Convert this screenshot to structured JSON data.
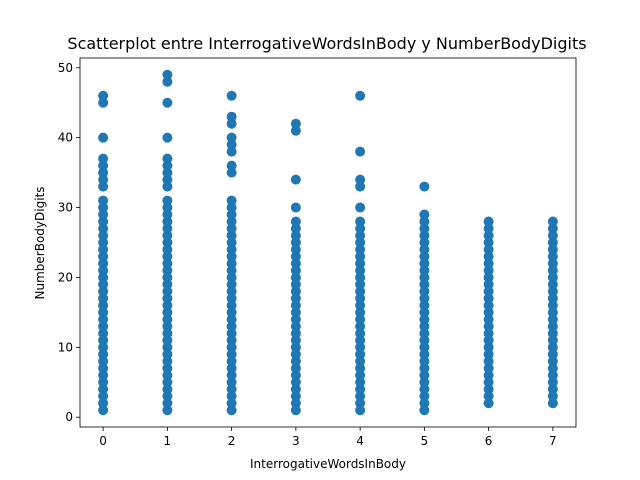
{
  "chart_data": {
    "type": "scatter",
    "title": "Scatterplot entre InterrogativeWordsInBody y NumberBodyDigits",
    "xlabel": "InterrogativeWordsInBody",
    "ylabel": "NumberBodyDigits",
    "xlim": [
      -0.36,
      7.36
    ],
    "ylim": [
      -1.4,
      51.4
    ],
    "x_ticks": [
      0,
      1,
      2,
      3,
      4,
      5,
      6,
      7
    ],
    "y_ticks": [
      0,
      10,
      20,
      30,
      40,
      50
    ],
    "grid": false,
    "point_color": "#1f77b4",
    "series": [
      {
        "groups": [
          {
            "x": 0,
            "y_range": [
              1,
              28
            ],
            "outliers": [
              29,
              30,
              31,
              33,
              34,
              35,
              36,
              37,
              40,
              45,
              46
            ]
          },
          {
            "x": 1,
            "y_range": [
              1,
              28
            ],
            "outliers": [
              29,
              30,
              31,
              33,
              34,
              35,
              36,
              37,
              40,
              45,
              48,
              49
            ]
          },
          {
            "x": 2,
            "y_range": [
              1,
              28
            ],
            "outliers": [
              29,
              30,
              31,
              35,
              36,
              38,
              39,
              40,
              42,
              43,
              46
            ]
          },
          {
            "x": 3,
            "y_range": [
              1,
              28
            ],
            "outliers": [
              30,
              34,
              41,
              42
            ]
          },
          {
            "x": 4,
            "y_range": [
              1,
              28
            ],
            "outliers": [
              30,
              33,
              34,
              38,
              46
            ]
          },
          {
            "x": 5,
            "y_range": [
              1,
              28
            ],
            "outliers": [
              29,
              33
            ]
          },
          {
            "x": 6,
            "y_range": [
              2,
              28
            ],
            "outliers": []
          },
          {
            "x": 7,
            "y_range": [
              2,
              28
            ],
            "outliers": []
          }
        ]
      }
    ]
  }
}
